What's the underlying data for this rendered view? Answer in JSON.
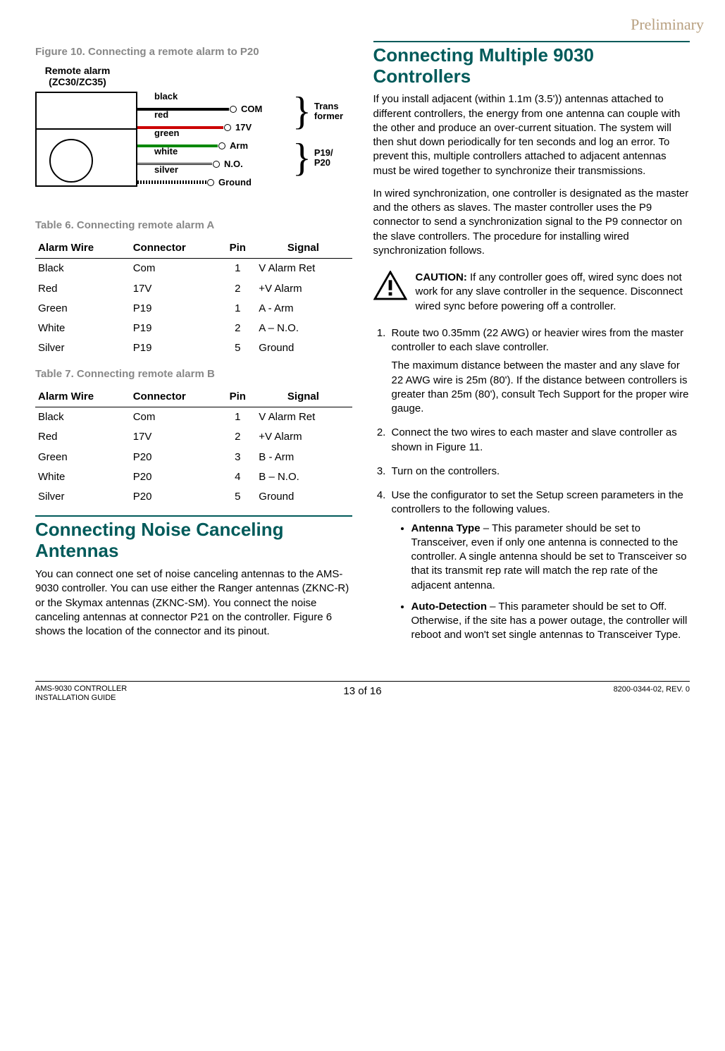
{
  "watermark": "Preliminary",
  "figure": {
    "title": "Figure 10. Connecting a remote alarm to P20",
    "remote_label_l1": "Remote alarm",
    "remote_label_l2": "(ZC30/ZC35)",
    "wires": {
      "black": {
        "name": "black",
        "signal": "COM",
        "color": "#000000"
      },
      "red": {
        "name": "red",
        "signal": "17V",
        "color": "#cc0000"
      },
      "green": {
        "name": "green",
        "signal": "Arm",
        "color": "#008800"
      },
      "white": {
        "name": "white",
        "signal": "N.O.",
        "color": "#ffffff"
      },
      "silver": {
        "name": "silver",
        "signal": "Ground",
        "color": "#888888"
      }
    },
    "group1_l1": "Trans",
    "group1_l2": "former",
    "group2_l1": "P19/",
    "group2_l2": "P20"
  },
  "table6": {
    "title": "Table 6. Connecting remote alarm A",
    "headers": {
      "c1": "Alarm Wire",
      "c2": "Connector",
      "c3": "Pin",
      "c4": "Signal"
    },
    "rows": [
      {
        "c1": "Black",
        "c2": "Com",
        "c3": "1",
        "c4": "V Alarm Ret"
      },
      {
        "c1": "Red",
        "c2": "17V",
        "c3": "2",
        "c4": "+V Alarm"
      },
      {
        "c1": "Green",
        "c2": "P19",
        "c3": "1",
        "c4": "A - Arm"
      },
      {
        "c1": "White",
        "c2": "P19",
        "c3": "2",
        "c4": "A – N.O."
      },
      {
        "c1": "Silver",
        "c2": "P19",
        "c3": "5",
        "c4": "Ground"
      }
    ]
  },
  "table7": {
    "title": "Table 7. Connecting remote alarm B",
    "headers": {
      "c1": "Alarm Wire",
      "c2": "Connector",
      "c3": "Pin",
      "c4": "Signal"
    },
    "rows": [
      {
        "c1": "Black",
        "c2": "Com",
        "c3": "1",
        "c4": "V Alarm Ret"
      },
      {
        "c1": "Red",
        "c2": "17V",
        "c3": "2",
        "c4": "+V Alarm"
      },
      {
        "c1": "Green",
        "c2": "P20",
        "c3": "3",
        "c4": "B - Arm"
      },
      {
        "c1": "White",
        "c2": "P20",
        "c3": "4",
        "c4": "B – N.O."
      },
      {
        "c1": "Silver",
        "c2": "P20",
        "c3": "5",
        "c4": "Ground"
      }
    ]
  },
  "sec_noise": {
    "heading": "Connecting Noise Canceling Antennas",
    "p1": "You can connect one set of noise canceling antennas to the AMS-9030 controller. You can use either the Ranger antennas (ZKNC-R) or the Skymax antennas (ZKNC-SM). You connect the noise canceling antennas at connector P21 on the controller. Figure 6 shows the location of the connector and its pinout."
  },
  "sec_multi": {
    "heading": "Connecting Multiple 9030 Controllers",
    "p1": "If you install adjacent (within 1.1m (3.5')) antennas attached to different controllers, the energy from one antenna can couple with the other and produce an over-current situation. The system will then shut down periodically for ten seconds and log an error. To prevent this, multiple controllers attached to adjacent antennas must be wired together to synchronize their transmissions.",
    "p2": "In wired synchronization, one controller is designated as the master and the others as slaves. The master controller uses the P9 connector to send a synchronization signal to the P9 connector on the slave controllers. The procedure for installing wired synchronization follows.",
    "caution_label": "CAUTION:",
    "caution": " If any controller goes off, wired sync does not work for any slave controller in the sequence. Disconnect wired sync before powering off a controller.",
    "steps": {
      "s1a": "Route two 0.35mm (22 AWG) or heavier wires from the master controller to each slave controller.",
      "s1b": "The maximum distance between the master and any slave for 22 AWG wire is 25m (80'). If the distance between controllers is greater than 25m (80'), consult Tech Support for the proper wire gauge.",
      "s2": "Connect the two wires to each master and slave controller as shown in Figure 11.",
      "s3": "Turn on the controllers.",
      "s4": "Use the configurator to set the Setup screen parameters in the controllers to the following values.",
      "b1_label": "Antenna Type",
      "b1": " – This parameter should be set to Transceiver, even if only one antenna is connected to the controller. A single antenna should be set to Transceiver so that its transmit rep rate will match the rep rate of the adjacent antenna.",
      "b2_label": "Auto-Detection",
      "b2": " – This parameter should be set to Off. Otherwise, if the site has a power outage, the controller will reboot and won't set single antennas to Transceiver Type."
    }
  },
  "footer": {
    "left_l1": "AMS-9030 CONTROLLER",
    "left_l2": "INSTALLATION GUIDE",
    "center": "13 of 16",
    "right": "8200-0344-02, REV. 0"
  },
  "colors": {
    "heading": "#005a5a",
    "muted": "#888888",
    "watermark": "#b8a080"
  }
}
